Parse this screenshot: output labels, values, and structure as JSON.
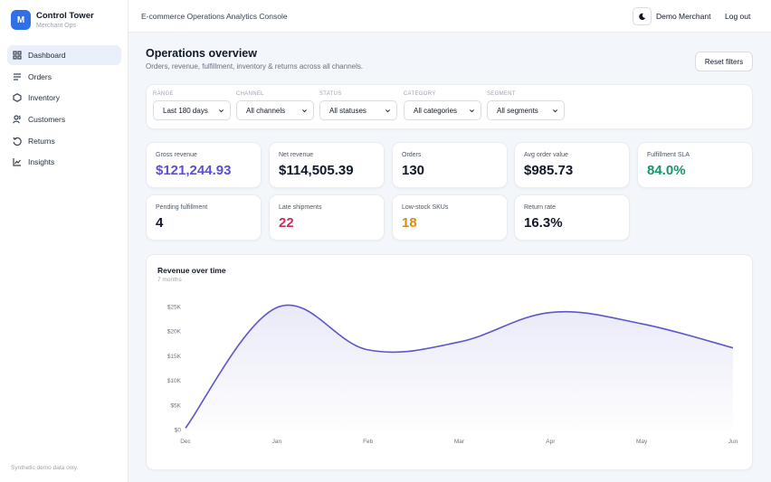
{
  "brand": {
    "initial": "M",
    "name": "Control Tower",
    "subtitle": "Merchant Ops"
  },
  "sidebar": {
    "items": [
      {
        "label": "Dashboard",
        "icon": "grid-icon",
        "active": true
      },
      {
        "label": "Orders",
        "icon": "list-icon",
        "active": false
      },
      {
        "label": "Inventory",
        "icon": "box-icon",
        "active": false
      },
      {
        "label": "Customers",
        "icon": "users-icon",
        "active": false
      },
      {
        "label": "Returns",
        "icon": "return-icon",
        "active": false
      },
      {
        "label": "Insights",
        "icon": "chart-line-icon",
        "active": false
      }
    ],
    "footer": "Synthetic demo data only."
  },
  "topbar": {
    "title": "E-commerce Operations Analytics Console",
    "theme_icon": "moon-icon",
    "user": "Demo Merchant",
    "logout": "Log out"
  },
  "overview": {
    "title": "Operations overview",
    "subtitle": "Orders, revenue, fulfillment, inventory & returns across all channels.",
    "reset_label": "Reset filters"
  },
  "filters": [
    {
      "label": "RANGE",
      "value": "Last 180 days"
    },
    {
      "label": "CHANNEL",
      "value": "All channels"
    },
    {
      "label": "STATUS",
      "value": "All statuses"
    },
    {
      "label": "CATEGORY",
      "value": "All categories"
    },
    {
      "label": "SEGMENT",
      "value": "All segments"
    }
  ],
  "kpis": [
    {
      "label": "Gross revenue",
      "value": "$121,244.93",
      "color": "#5b4fcf"
    },
    {
      "label": "Net revenue",
      "value": "$114,505.39",
      "color": "#111827"
    },
    {
      "label": "Orders",
      "value": "130",
      "color": "#111827"
    },
    {
      "label": "Avg order value",
      "value": "$985.73",
      "color": "#111827"
    },
    {
      "label": "Fulfillment SLA",
      "value": "84.0%",
      "color": "#16946a"
    },
    {
      "label": "Pending fulfillment",
      "value": "4",
      "color": "#111827"
    },
    {
      "label": "Late shipments",
      "value": "22",
      "color": "#d6285c"
    },
    {
      "label": "Low-stock SKUs",
      "value": "18",
      "color": "#d98a15"
    },
    {
      "label": "Return rate",
      "value": "16.3%",
      "color": "#111827"
    }
  ],
  "chart_data": {
    "type": "area",
    "title": "Revenue over time",
    "subtitle": "7 months",
    "x": [
      "Dec",
      "Jan",
      "Feb",
      "Mar",
      "Apr",
      "May",
      "Jun"
    ],
    "series": [
      {
        "values": [
          300,
          24800,
          16200,
          17800,
          23800,
          21500,
          16600
        ]
      }
    ],
    "yticks": [
      "$0",
      "$5K",
      "$10K",
      "$15K",
      "$20K",
      "$25K"
    ],
    "ylim": [
      0,
      25000
    ],
    "line_color": "#5b57c9",
    "grid": false
  }
}
